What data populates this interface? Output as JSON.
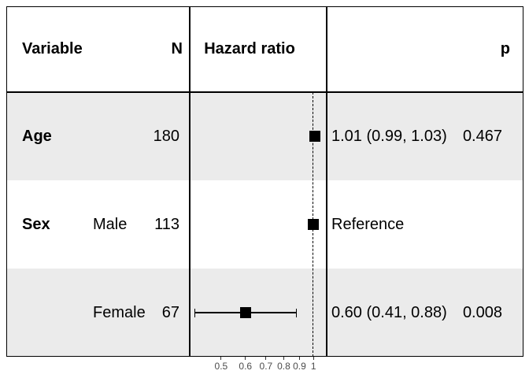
{
  "table": {
    "headers": {
      "variable": "Variable",
      "n": "N",
      "hazard_ratio": "Hazard ratio",
      "p": "p"
    }
  },
  "chart_data": {
    "type": "scatter",
    "variant": "forest-plot",
    "x_scale": "log10",
    "xlim": [
      0.395,
      1.104
    ],
    "x_tick_values": [
      0.5,
      0.6,
      0.7,
      0.8,
      0.9,
      1
    ],
    "x_tick_labels": [
      "0.5",
      "0.6",
      "0.7",
      "0.8",
      "0.9",
      "1"
    ],
    "reference_line_x": 1,
    "grid": false,
    "rows": [
      {
        "variable": "Age",
        "level": "",
        "n": "180",
        "hr": 1.01,
        "ci_low": 0.99,
        "ci_high": 1.03,
        "estimate_label": "1.01 (0.99, 1.03)",
        "p": "0.467",
        "shaded": true
      },
      {
        "variable": "Sex",
        "level": "Male",
        "n": "113",
        "hr": 1.0,
        "ci_low": null,
        "ci_high": null,
        "estimate_label": "Reference",
        "p": "",
        "shaded": false
      },
      {
        "variable": "",
        "level": "Female",
        "n": "67",
        "hr": 0.6,
        "ci_low": 0.41,
        "ci_high": 0.88,
        "estimate_label": "0.60 (0.41, 0.88)",
        "p": "0.008",
        "shaded": true
      }
    ]
  },
  "colors": {
    "band": "#ebebeb",
    "border": "#000000",
    "marker": "#000000",
    "reference_line": "#000000",
    "axis_text": "#4d4d4d",
    "tick": "#333333",
    "text": "#000000"
  }
}
